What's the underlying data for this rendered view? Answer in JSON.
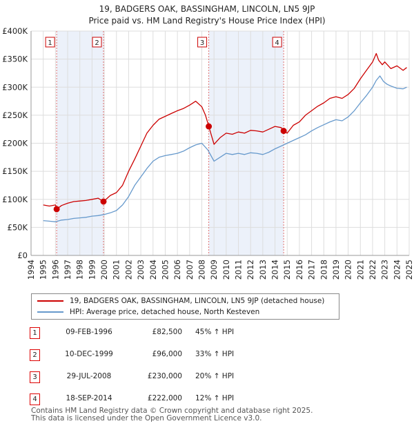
{
  "title_line1": "19, BADGERS OAK, BASSINGHAM, LINCOLN, LN5 9JP",
  "title_line2": "Price paid vs. HM Land Registry's House Price Index (HPI)",
  "legend": [
    {
      "label": "19, BADGERS OAK, BASSINGHAM, LINCOLN, LN5 9JP (detached house)",
      "color": "#cc0000"
    },
    {
      "label": "HPI: Average price, detached house, North Kesteven",
      "color": "#6699cc"
    }
  ],
  "sales": [
    {
      "num": "1",
      "date": "09-FEB-1996",
      "price": "£82,500",
      "hpi": "45% ↑ HPI"
    },
    {
      "num": "2",
      "date": "10-DEC-1999",
      "price": "£96,000",
      "hpi": "33% ↑ HPI"
    },
    {
      "num": "3",
      "date": "29-JUL-2008",
      "price": "£230,000",
      "hpi": "20% ↑ HPI"
    },
    {
      "num": "4",
      "date": "18-SEP-2014",
      "price": "£222,000",
      "hpi": "12% ↑ HPI"
    }
  ],
  "footer": [
    "Contains HM Land Registry data © Crown copyright and database right 2025.",
    "This data is licensed under the Open Government Licence v3.0."
  ],
  "chart_data": {
    "type": "line",
    "title": "19, BADGERS OAK, BASSINGHAM, LINCOLN, LN5 9JP",
    "subtitle": "Price paid vs. HM Land Registry's House Price Index (HPI)",
    "xlabel": "",
    "ylabel": "",
    "xlim": [
      1994,
      2025
    ],
    "ylim": [
      0,
      400000
    ],
    "x_ticks": [
      1994,
      1995,
      1996,
      1997,
      1998,
      1999,
      2000,
      2001,
      2002,
      2003,
      2004,
      2005,
      2006,
      2007,
      2008,
      2009,
      2010,
      2011,
      2012,
      2013,
      2014,
      2015,
      2016,
      2017,
      2018,
      2019,
      2020,
      2021,
      2022,
      2023,
      2024,
      2025
    ],
    "y_ticks": [
      {
        "value": 0,
        "label": "£0"
      },
      {
        "value": 50000,
        "label": "£50K"
      },
      {
        "value": 100000,
        "label": "£100K"
      },
      {
        "value": 150000,
        "label": "£150K"
      },
      {
        "value": 200000,
        "label": "£200K"
      },
      {
        "value": 250000,
        "label": "£250K"
      },
      {
        "value": 300000,
        "label": "£300K"
      },
      {
        "value": 350000,
        "label": "£350K"
      },
      {
        "value": 400000,
        "label": "£400K"
      }
    ],
    "shaded_periods": [
      [
        1996.1,
        1999.94
      ],
      [
        2008.57,
        2014.71
      ]
    ],
    "sale_markers": [
      {
        "num": "1",
        "x": 1996.1,
        "y": 82500
      },
      {
        "num": "2",
        "x": 1999.94,
        "y": 96000
      },
      {
        "num": "3",
        "x": 2008.57,
        "y": 230000
      },
      {
        "num": "4",
        "x": 2014.71,
        "y": 222000
      }
    ],
    "series": [
      {
        "name": "19, BADGERS OAK, BASSINGHAM, LINCOLN, LN5 9JP (detached house)",
        "color": "#cc0000",
        "x": [
          1995.0,
          1995.5,
          1996.0,
          1996.1,
          1996.5,
          1997.0,
          1997.5,
          1998.0,
          1998.5,
          1999.0,
          1999.5,
          1999.94,
          2000.5,
          2001.0,
          2001.5,
          2002.0,
          2002.5,
          2003.0,
          2003.5,
          2004.0,
          2004.5,
          2005.0,
          2005.5,
          2006.0,
          2006.5,
          2007.0,
          2007.5,
          2008.0,
          2008.3,
          2008.57,
          2009.0,
          2009.5,
          2010.0,
          2010.5,
          2011.0,
          2011.5,
          2012.0,
          2012.5,
          2013.0,
          2013.5,
          2014.0,
          2014.5,
          2014.71,
          2015.0,
          2015.5,
          2016.0,
          2016.5,
          2017.0,
          2017.5,
          2018.0,
          2018.5,
          2019.0,
          2019.5,
          2020.0,
          2020.5,
          2021.0,
          2021.5,
          2022.0,
          2022.3,
          2022.5,
          2022.8,
          2023.0,
          2023.5,
          2024.0,
          2024.5,
          2024.8
        ],
        "values": [
          90000,
          88000,
          90000,
          82500,
          89000,
          93000,
          96000,
          97000,
          98000,
          100000,
          102000,
          96000,
          107000,
          112000,
          125000,
          150000,
          172000,
          195000,
          218000,
          232000,
          243000,
          248000,
          253000,
          258000,
          262000,
          268000,
          275000,
          265000,
          250000,
          230000,
          198000,
          210000,
          218000,
          216000,
          220000,
          218000,
          223000,
          222000,
          220000,
          225000,
          230000,
          228000,
          222000,
          218000,
          232000,
          238000,
          250000,
          258000,
          266000,
          272000,
          280000,
          283000,
          280000,
          287000,
          298000,
          315000,
          330000,
          345000,
          360000,
          348000,
          340000,
          345000,
          333000,
          338000,
          330000,
          335000
        ]
      },
      {
        "name": "HPI: Average price, detached house, North Kesteven",
        "color": "#6699cc",
        "x": [
          1995.0,
          1995.5,
          1996.0,
          1996.5,
          1997.0,
          1997.5,
          1998.0,
          1998.5,
          1999.0,
          1999.5,
          2000.0,
          2000.5,
          2001.0,
          2001.5,
          2002.0,
          2002.5,
          2003.0,
          2003.5,
          2004.0,
          2004.5,
          2005.0,
          2005.5,
          2006.0,
          2006.5,
          2007.0,
          2007.5,
          2008.0,
          2008.5,
          2009.0,
          2009.5,
          2010.0,
          2010.5,
          2011.0,
          2011.5,
          2012.0,
          2012.5,
          2013.0,
          2013.5,
          2014.0,
          2014.5,
          2015.0,
          2015.5,
          2016.0,
          2016.5,
          2017.0,
          2017.5,
          2018.0,
          2018.5,
          2019.0,
          2019.5,
          2020.0,
          2020.5,
          2021.0,
          2021.5,
          2022.0,
          2022.3,
          2022.6,
          2022.9,
          2023.2,
          2023.5,
          2024.0,
          2024.5,
          2024.8
        ],
        "values": [
          62000,
          61000,
          60000,
          63000,
          64000,
          66000,
          67000,
          68000,
          70000,
          71000,
          73000,
          76000,
          80000,
          90000,
          105000,
          125000,
          140000,
          155000,
          168000,
          175000,
          178000,
          180000,
          182000,
          186000,
          192000,
          197000,
          200000,
          188000,
          168000,
          175000,
          182000,
          180000,
          182000,
          180000,
          183000,
          182000,
          180000,
          184000,
          190000,
          195000,
          200000,
          205000,
          210000,
          215000,
          222000,
          228000,
          233000,
          238000,
          242000,
          240000,
          247000,
          258000,
          272000,
          285000,
          300000,
          312000,
          320000,
          310000,
          305000,
          302000,
          298000,
          297000,
          300000
        ]
      }
    ]
  }
}
